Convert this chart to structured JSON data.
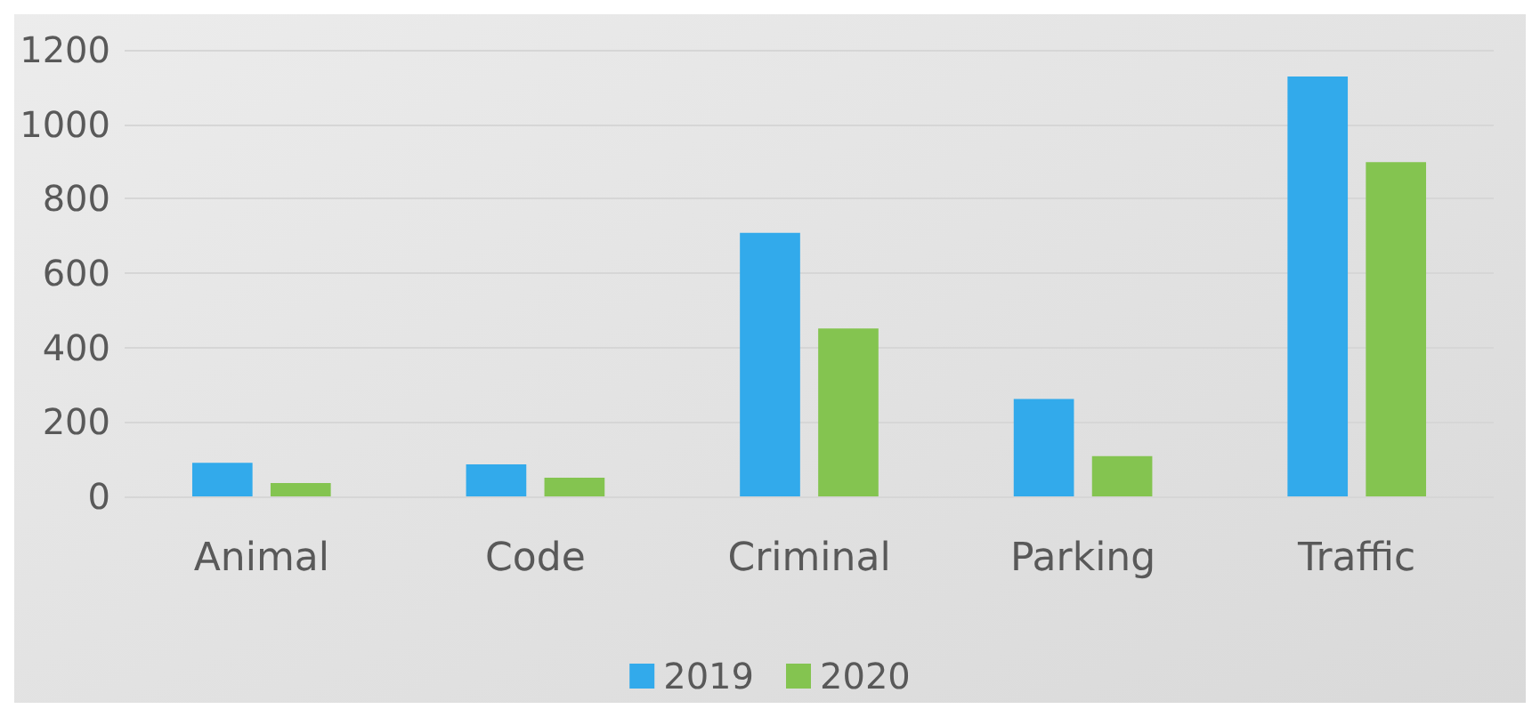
{
  "chart_data": {
    "type": "bar",
    "categories": [
      "Animal",
      "Code",
      "Criminal",
      "Parking",
      "Traffic"
    ],
    "series": [
      {
        "name": "2019",
        "color": "#32aaeb",
        "values": [
          90,
          86,
          708,
          262,
          1128
        ]
      },
      {
        "name": "2020",
        "color": "#84c450",
        "values": [
          36,
          50,
          451,
          108,
          898
        ]
      }
    ],
    "ylim": [
      0,
      1200
    ],
    "yticks": [
      0,
      200,
      400,
      600,
      800,
      1000,
      1200
    ],
    "grid": "y",
    "legend": "bottom"
  }
}
